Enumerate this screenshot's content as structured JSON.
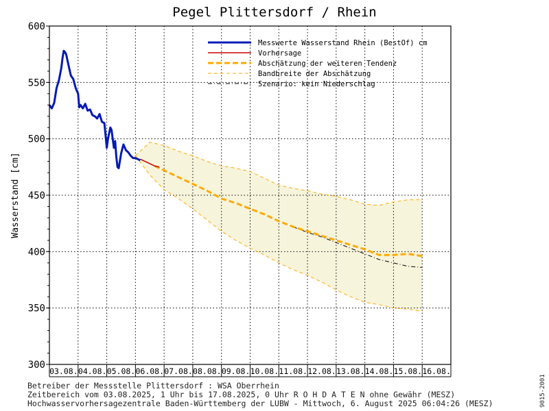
{
  "chart_data": {
    "type": "line",
    "title": "Pegel Plittersdorf / Rhein",
    "ylabel": "Wasserstand [cm]",
    "ylim": [
      300,
      600
    ],
    "yticks": [
      300,
      350,
      400,
      450,
      500,
      550,
      600
    ],
    "xlim": [
      "2025-08-03",
      "2025-08-17"
    ],
    "xticks": [
      "03.08.",
      "04.08.",
      "05.08.",
      "06.08.",
      "07.08.",
      "08.08.",
      "09.08.",
      "10.08.",
      "11.08.",
      "12.08.",
      "13.08.",
      "14.08.",
      "15.08.",
      "16.08."
    ],
    "grid": true,
    "legend_position": "top-right",
    "legend": [
      {
        "label": "Messwerte Wasserstand Rhein (BestOf)  cm",
        "color": "#0019b4",
        "style": "solid-thick"
      },
      {
        "label": "Vorhersage",
        "color": "#c80000",
        "style": "solid"
      },
      {
        "label": "Abschätzung der weiteren Tendenz",
        "color": "#ffaa00",
        "style": "dashed-thick"
      },
      {
        "label": "Bandbreite der Abschätzung",
        "color": "#ffaa00",
        "style": "dashed-thin"
      },
      {
        "label": "Szenario: kein Niederschlag",
        "color": "#000000",
        "style": "dash-dot"
      }
    ],
    "series": [
      {
        "name": "Messwerte Wasserstand Rhein (BestOf)  cm",
        "color": "#0019b4",
        "x": [
          "2025-08-03T00:00",
          "2025-08-03T02:00",
          "2025-08-03T04:00",
          "2025-08-03T06:00",
          "2025-08-03T08:00",
          "2025-08-03T10:00",
          "2025-08-03T11:00",
          "2025-08-03T12:00",
          "2025-08-03T13:00",
          "2025-08-03T14:00",
          "2025-08-03T16:00",
          "2025-08-03T18:00",
          "2025-08-03T20:00",
          "2025-08-03T22:00",
          "2025-08-04T00:00",
          "2025-08-04T01:00",
          "2025-08-04T02:00",
          "2025-08-04T04:00",
          "2025-08-04T06:00",
          "2025-08-04T08:00",
          "2025-08-04T10:00",
          "2025-08-04T12:00",
          "2025-08-04T14:00",
          "2025-08-04T16:00",
          "2025-08-04T18:00",
          "2025-08-04T20:00",
          "2025-08-04T22:00",
          "2025-08-05T00:00",
          "2025-08-05T01:00",
          "2025-08-05T02:00",
          "2025-08-05T03:00",
          "2025-08-05T04:00",
          "2025-08-05T06:00",
          "2025-08-05T07:00",
          "2025-08-05T08:00",
          "2025-08-05T09:00",
          "2025-08-05T10:00",
          "2025-08-05T12:00",
          "2025-08-05T14:00",
          "2025-08-05T16:00",
          "2025-08-05T18:00",
          "2025-08-05T20:00",
          "2025-08-05T22:00",
          "2025-08-06T00:00",
          "2025-08-06T02:00",
          "2025-08-06T04:00"
        ],
        "values": [
          530,
          527,
          532,
          545,
          552,
          563,
          572,
          578,
          577,
          575,
          565,
          556,
          553,
          545,
          540,
          528,
          530,
          527,
          531,
          525,
          526,
          521,
          520,
          518,
          522,
          515,
          514,
          492,
          500,
          505,
          510,
          508,
          492,
          498,
          484,
          475,
          474,
          487,
          495,
          490,
          488,
          485,
          483,
          483,
          482,
          481
        ]
      },
      {
        "name": "Vorhersage",
        "color": "#c80000",
        "x": [
          "2025-08-06T04:00",
          "2025-08-06T08:00",
          "2025-08-06T12:00",
          "2025-08-06T16:00",
          "2025-08-06T20:00"
        ],
        "values": [
          482,
          480,
          478,
          476,
          475
        ]
      },
      {
        "name": "Abschätzung der weiteren Tendenz",
        "color": "#ffaa00",
        "x": [
          "2025-08-06T16:00",
          "2025-08-07T00:00",
          "2025-08-07T12:00",
          "2025-08-08T00:00",
          "2025-08-08T12:00",
          "2025-08-09T00:00",
          "2025-08-09T12:00",
          "2025-08-10T00:00",
          "2025-08-10T12:00",
          "2025-08-11T00:00",
          "2025-08-11T12:00",
          "2025-08-12T00:00",
          "2025-08-12T12:00",
          "2025-08-13T00:00",
          "2025-08-13T12:00",
          "2025-08-14T00:00",
          "2025-08-14T12:00",
          "2025-08-15T00:00",
          "2025-08-15T12:00",
          "2025-08-16T00:00"
        ],
        "values": [
          476,
          472,
          466,
          460,
          454,
          447,
          443,
          438,
          433,
          427,
          422,
          418,
          414,
          410,
          406,
          402,
          397,
          397,
          398,
          396
        ]
      },
      {
        "name": "Bandbreite der Abschätzung",
        "color": "#ffaa00",
        "x": [
          "2025-08-06T00:00",
          "2025-08-06T12:00",
          "2025-08-07T00:00",
          "2025-08-07T12:00",
          "2025-08-08T00:00",
          "2025-08-08T12:00",
          "2025-08-09T00:00",
          "2025-08-09T12:00",
          "2025-08-10T00:00",
          "2025-08-10T12:00",
          "2025-08-11T00:00",
          "2025-08-11T12:00",
          "2025-08-12T00:00",
          "2025-08-12T12:00",
          "2025-08-13T00:00",
          "2025-08-13T12:00",
          "2025-08-14T00:00",
          "2025-08-14T12:00",
          "2025-08-15T00:00",
          "2025-08-15T12:00",
          "2025-08-16T00:00"
        ],
        "upper": [
          485,
          497,
          494,
          489,
          485,
          480,
          476,
          474,
          471,
          465,
          459,
          456,
          454,
          451,
          449,
          446,
          442,
          441,
          444,
          446,
          446
        ],
        "lower": [
          485,
          468,
          455,
          447,
          438,
          428,
          418,
          410,
          403,
          397,
          390,
          384,
          379,
          373,
          366,
          360,
          355,
          353,
          350,
          349,
          347
        ]
      },
      {
        "name": "Szenario: kein Niederschlag",
        "color": "#000000",
        "x": [
          "2025-08-11T12:00",
          "2025-08-12T00:00",
          "2025-08-12T12:00",
          "2025-08-13T00:00",
          "2025-08-13T12:00",
          "2025-08-14T00:00",
          "2025-08-14T12:00",
          "2025-08-15T00:00",
          "2025-08-15T12:00",
          "2025-08-16T00:00"
        ],
        "values": [
          422,
          417,
          413,
          408,
          403,
          398,
          393,
          390,
          387,
          386
        ]
      }
    ]
  },
  "footer": {
    "line1": "Betreiber der Messstelle Plittersdorf : WSA Oberrhein",
    "line2": "Zeitbereich vom 03.08.2025, 1 Uhr bis 17.08.2025, 0 Uhr   R O H D A T E N ohne Gewähr (MESZ)",
    "line3": "Hochwasservorhersagezentrale Baden-Württemberg der LUBW - Mittwoch, 6. August 2025 06:04:26 (MESZ)",
    "code": "9015-2001"
  }
}
